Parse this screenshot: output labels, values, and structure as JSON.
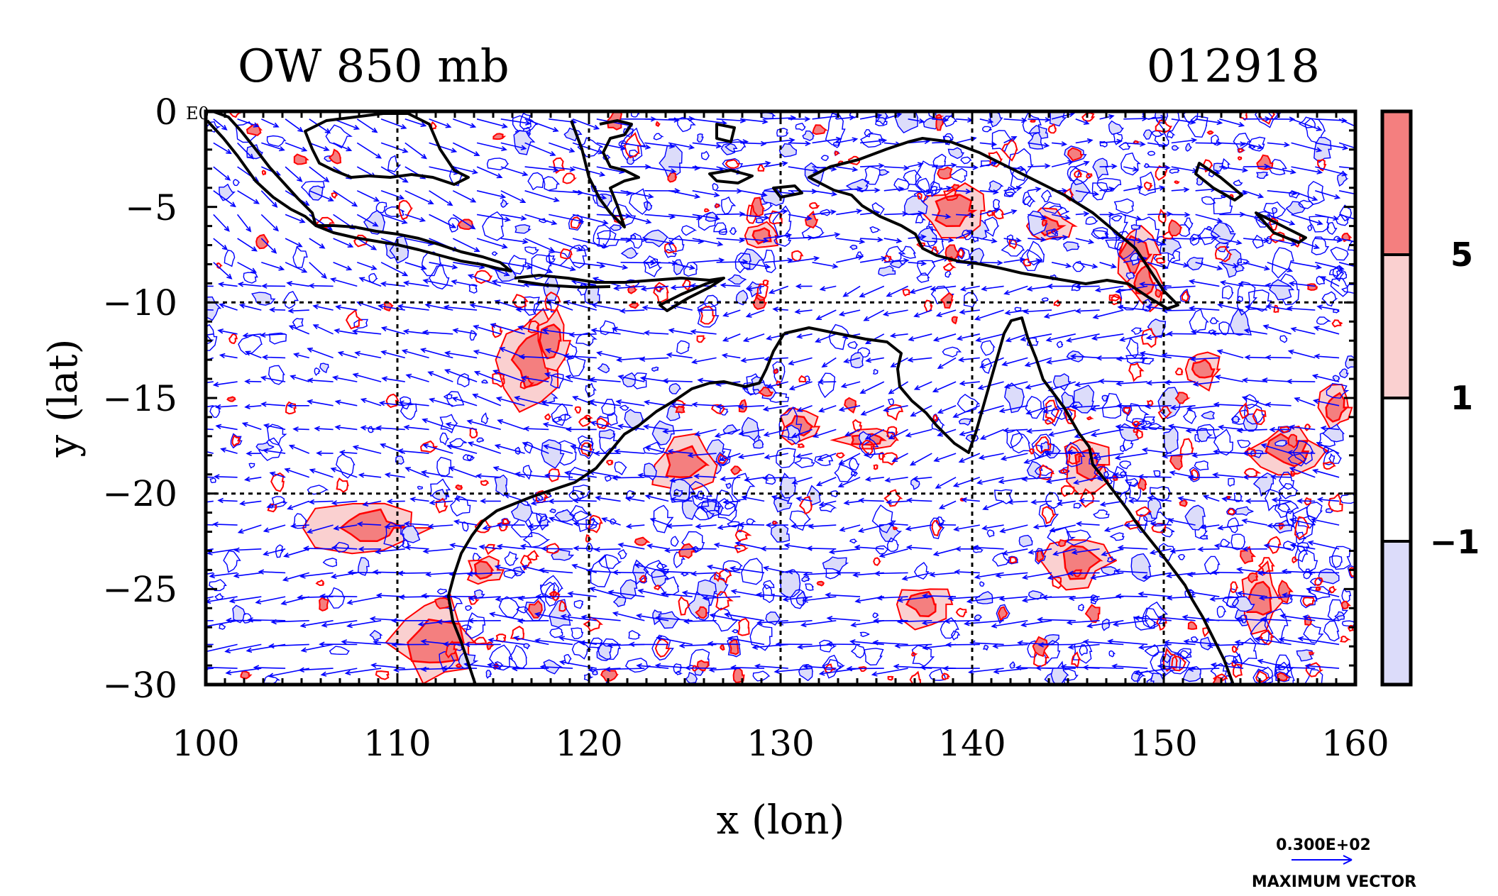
{
  "title_left": "OW 850 mb",
  "title_right": "012918",
  "corner_label": "E0",
  "chart_data": {
    "type": "map",
    "xlabel": "x (lon)",
    "ylabel": "y (lat)",
    "xlim": [
      100,
      160
    ],
    "ylim": [
      -30,
      0
    ],
    "x_ticks": [
      "100",
      "110",
      "120",
      "130",
      "140",
      "150",
      "160"
    ],
    "y_ticks": [
      "0",
      "−5",
      "−10",
      "−15",
      "−20",
      "−25",
      "−30"
    ],
    "grid": "dashed, every 10 degrees",
    "contour_colors": {
      "positive": "#ff0000",
      "negative": "#0000ff"
    },
    "colorbar": {
      "labels": [
        "5",
        "1",
        "−1"
      ],
      "bands": [
        {
          "from": 5,
          "to": null,
          "color": "#f47f7f"
        },
        {
          "from": 1,
          "to": 5,
          "color": "#fad0d0"
        },
        {
          "from": -1,
          "to": 1,
          "color": "#ffffff"
        },
        {
          "from": null,
          "to": -1,
          "color": "#dcdcfa"
        }
      ]
    },
    "vector_legend": {
      "value_label": "0.300E+02",
      "caption": "MAXIMUM VECTOR",
      "color": "#0000ff"
    }
  }
}
